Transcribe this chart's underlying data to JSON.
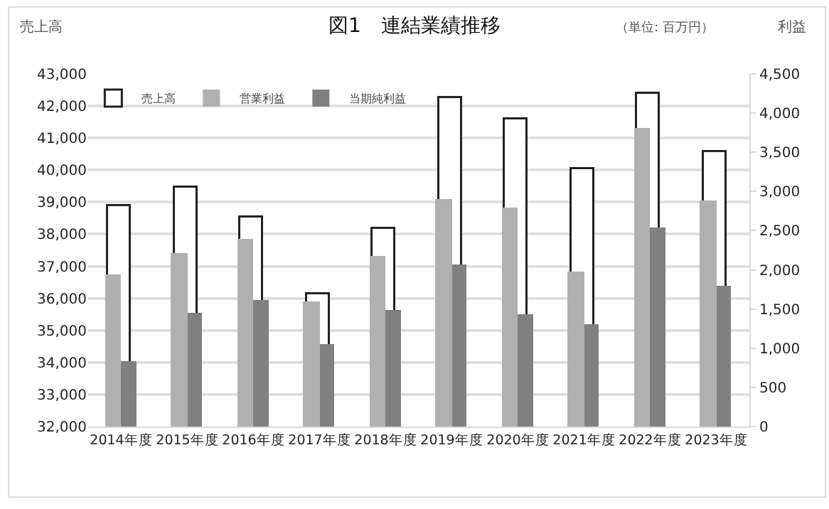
{
  "chart_data": {
    "type": "bar",
    "title": "図1　連結業績推移",
    "ylabel": "売上高",
    "y2label": "利益",
    "annotations": [
      "（単位: 百万円）"
    ],
    "categories": [
      "2014年度",
      "2015年度",
      "2016年度",
      "2017年度",
      "2018年度",
      "2019年度",
      "2020年度",
      "2021年度",
      "2022年度",
      "2023年度"
    ],
    "series": [
      {
        "name": "売上高",
        "color": "#ffffff",
        "values": [
          38890,
          39450,
          38500,
          36110,
          38150,
          42260,
          41570,
          40010,
          42400,
          40570
        ]
      },
      {
        "name": "営業利益",
        "color": "#b0b0b0",
        "axis": "y2",
        "values": [
          1950,
          2210,
          2400,
          1600,
          2170,
          2900,
          2790,
          1970,
          3810,
          2880
        ]
      },
      {
        "name": "当期純利益",
        "color": "#808080",
        "axis": "y2",
        "values": [
          840,
          1460,
          1610,
          1050,
          1490,
          2070,
          1430,
          1300,
          2540,
          1790
        ]
      }
    ],
    "ylim": [
      32000,
      43000
    ],
    "yticks": [
      {
        "value": 32000,
        "label": "32,000"
      },
      {
        "value": 33000,
        "label": "33,000"
      },
      {
        "value": 34000,
        "label": "34,000"
      },
      {
        "value": 35000,
        "label": "35,000"
      },
      {
        "value": 36000,
        "label": "36,000"
      },
      {
        "value": 37000,
        "label": "37,000"
      },
      {
        "value": 38000,
        "label": "38,000"
      },
      {
        "value": 39000,
        "label": "39,000"
      },
      {
        "value": 40000,
        "label": "40,000"
      },
      {
        "value": 41000,
        "label": "41,000"
      },
      {
        "value": 42000,
        "label": "42,000"
      },
      {
        "value": 43000,
        "label": "43,000"
      }
    ],
    "y2lim": [
      0,
      4500
    ],
    "y2ticks": [
      0,
      500,
      {
        "value": 1000,
        "label": "1,000"
      },
      {
        "value": 1500,
        "label": "1,500"
      },
      {
        "value": 2000,
        "label": "2,000"
      },
      {
        "value": 2500,
        "label": "2,500"
      },
      {
        "value": 3000,
        "label": "3,000"
      },
      {
        "value": 3500,
        "label": "3,500"
      },
      {
        "value": 4000,
        "label": "4,000"
      },
      {
        "value": 4500,
        "label": "4,500"
      }
    ],
    "grid": "y",
    "legend": "top left"
  }
}
